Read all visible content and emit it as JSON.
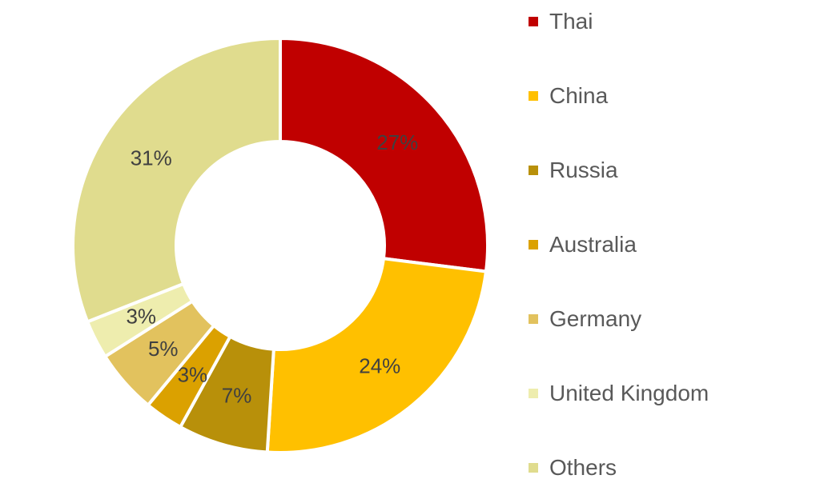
{
  "chart_data": {
    "type": "pie",
    "subtype": "donut",
    "title": "",
    "categories": [
      "Thai",
      "China",
      "Russia",
      "Australia",
      "Germany",
      "United Kingdom",
      "Others"
    ],
    "values": [
      27,
      24,
      7,
      3,
      5,
      3,
      31
    ],
    "data_labels": [
      "27%",
      "24%",
      "7%",
      "3%",
      "5%",
      "3%",
      "31%"
    ],
    "colors": [
      "#C00000",
      "#FFC000",
      "#B8900A",
      "#DBA100",
      "#E2C25E",
      "#EEEDAE",
      "#E0DC8E"
    ],
    "start_angle": "top, clockwise",
    "legend": "right",
    "label_color": "#404040"
  }
}
